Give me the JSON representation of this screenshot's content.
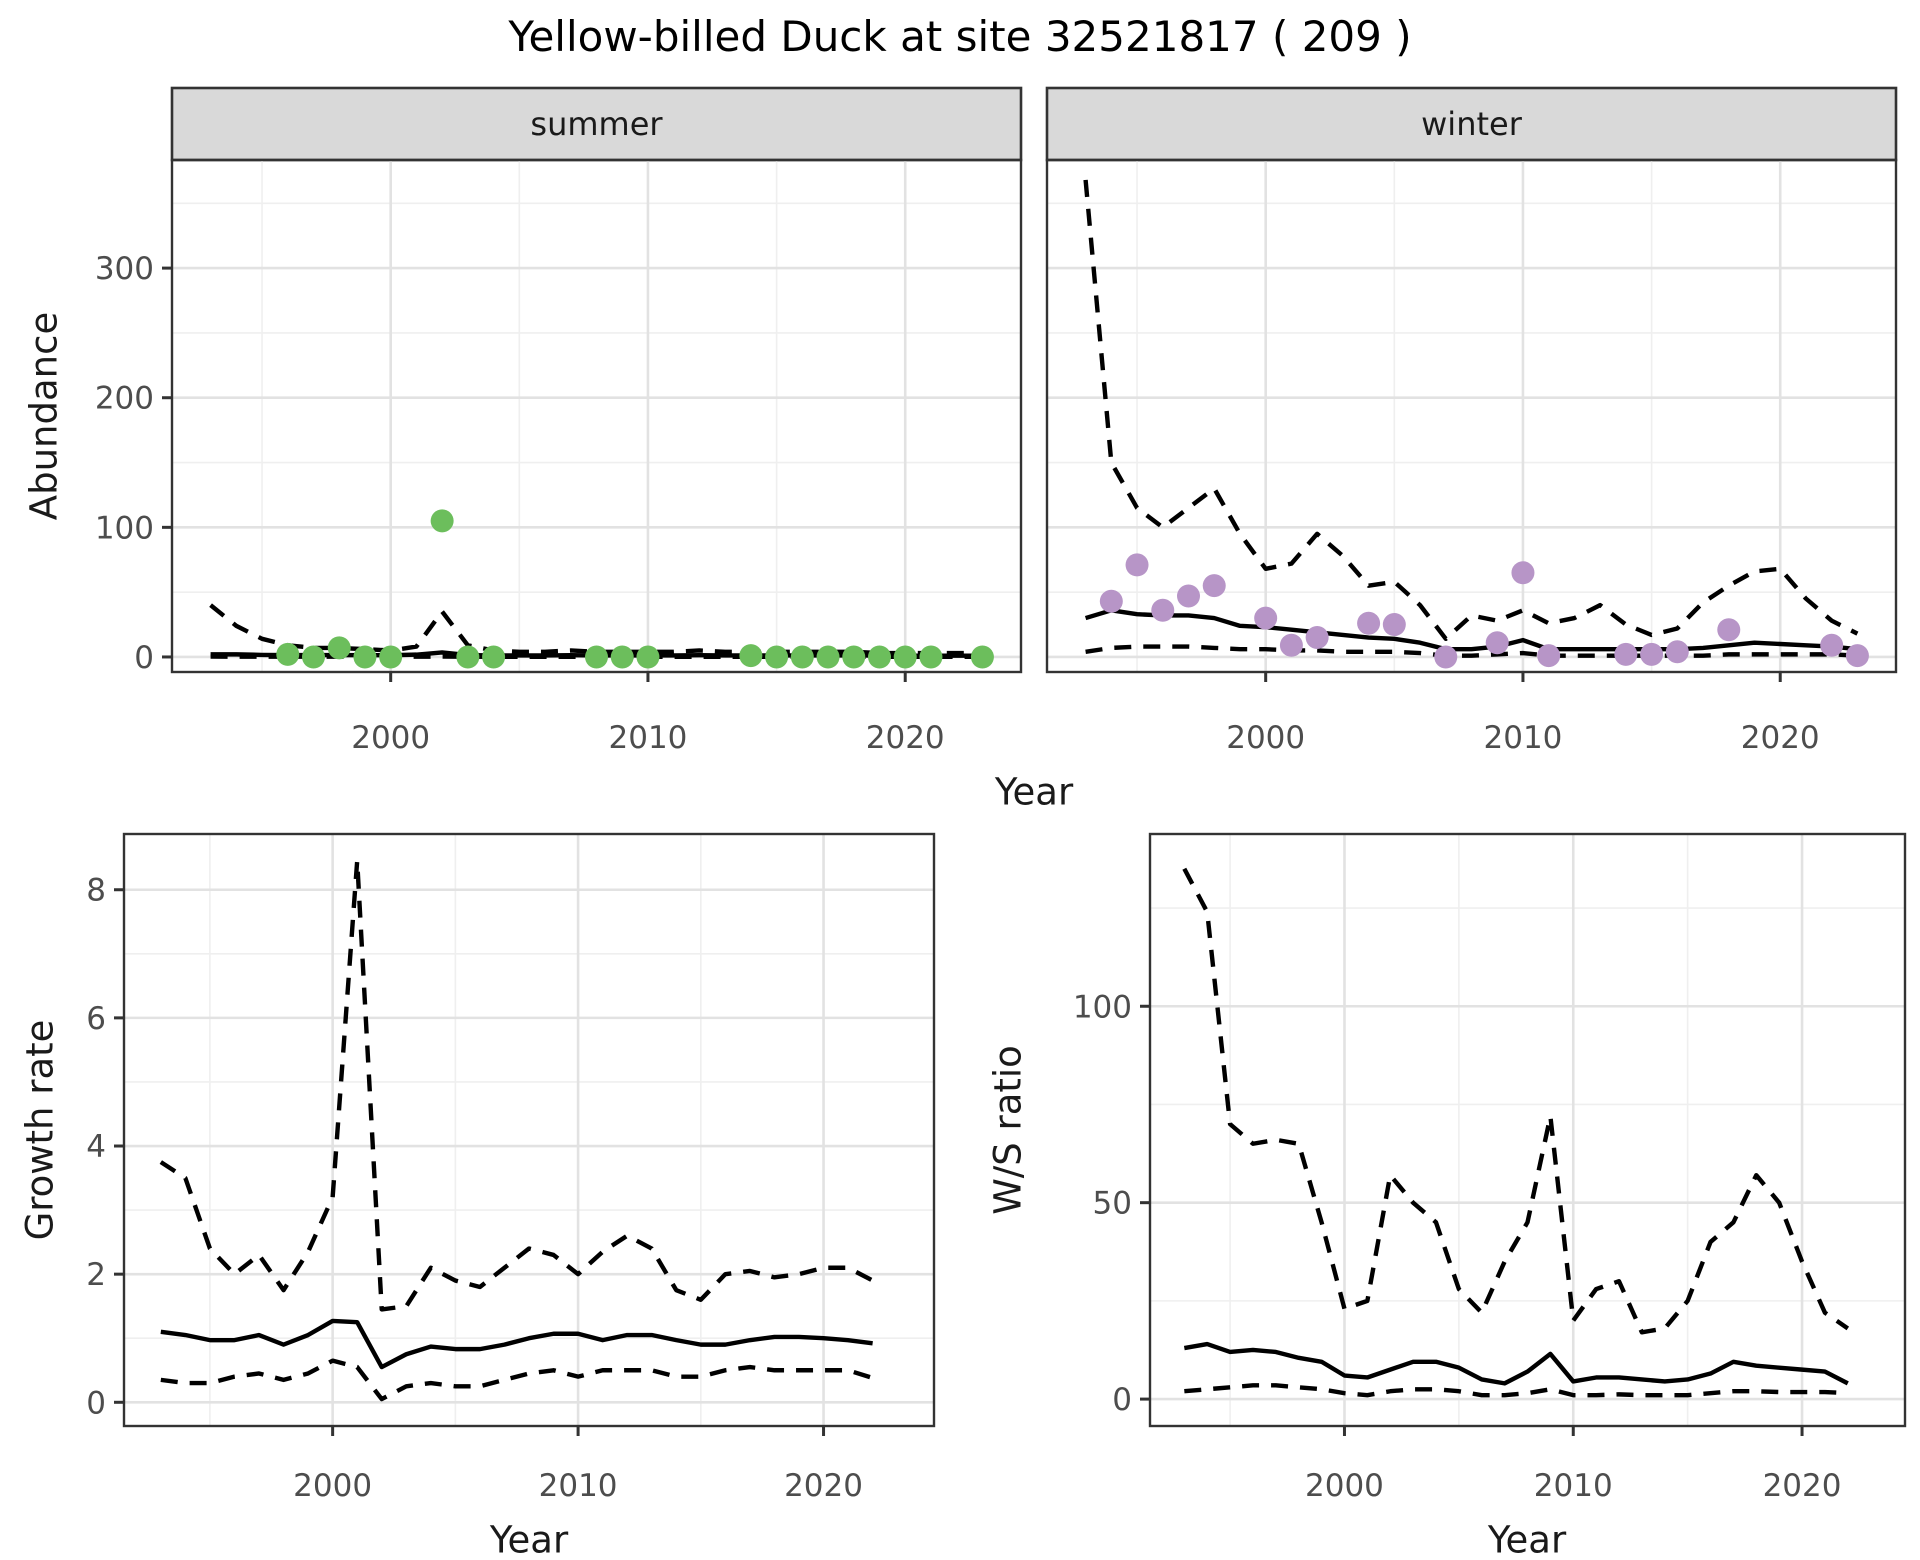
{
  "title": "Yellow-billed Duck at site 32521817 ( 209 )",
  "colors": {
    "background": "#FFFFFF",
    "line": "#000000",
    "summer_points": "#6CBE5C",
    "winter_points": "#B795C7",
    "strip_fill": "#D9D9D9",
    "strip_border": "#333333",
    "panel_border": "#333333",
    "grid_major": "#E2E2E2",
    "grid_minor": "#EFEFEF",
    "tick": "#333333",
    "tick_label": "#4D4D4D",
    "text": "#1A1A1A"
  },
  "chart_data": [
    {
      "id": "abundance",
      "type": "line+scatter",
      "ylabel": "Abundance",
      "xlabel": "Year",
      "xlim": [
        1991.5,
        2024.5
      ],
      "ylim": [
        -11.6,
        383.4
      ],
      "x_major_ticks": [
        2000,
        2010,
        2020
      ],
      "x_minor_ticks": [
        1995,
        2005,
        2015
      ],
      "y_major_ticks": [
        0,
        100,
        200,
        300
      ],
      "y_minor_ticks": [
        50,
        150,
        250,
        350
      ],
      "grid": true,
      "legend": "none",
      "line_styles": {
        "median": "solid",
        "ci": "dashed"
      },
      "facets": [
        {
          "name": "summer",
          "point_color": "#6CBE5C",
          "years": [
            1993,
            1994,
            1995,
            1996,
            1997,
            1998,
            1999,
            2000,
            2001,
            2002,
            2003,
            2004,
            2005,
            2006,
            2007,
            2008,
            2009,
            2010,
            2011,
            2012,
            2013,
            2014,
            2015,
            2016,
            2017,
            2018,
            2019,
            2020,
            2021,
            2022,
            2023
          ],
          "ci_upper": [
            40,
            24,
            14,
            9,
            7,
            7,
            6,
            5,
            8,
            35,
            9,
            5,
            4,
            4,
            5,
            4,
            4,
            4,
            4,
            5,
            4,
            4,
            4,
            4,
            4,
            4,
            3,
            3,
            3,
            3,
            3
          ],
          "median": [
            2,
            2,
            1.6,
            1.5,
            1.5,
            1.5,
            1.4,
            1.4,
            1.8,
            3.5,
            1.5,
            1.2,
            1.2,
            1.2,
            1.4,
            1.2,
            1.2,
            1.2,
            1.2,
            1.4,
            1.2,
            1.2,
            1.2,
            1.2,
            1.2,
            1.2,
            1.1,
            1,
            1,
            1,
            1
          ],
          "ci_lower": [
            0.3,
            0.2,
            0.2,
            0.2,
            0.2,
            0.2,
            0.2,
            0.2,
            0.2,
            0.3,
            0.2,
            0.1,
            0.1,
            0.1,
            0.1,
            0.1,
            0.1,
            0.1,
            0.1,
            0.1,
            0.1,
            0.1,
            0.1,
            0.1,
            0.1,
            0.1,
            0.1,
            0.1,
            0.1,
            0.1,
            0.1
          ],
          "points": [
            [
              1996,
              2
            ],
            [
              1997,
              0
            ],
            [
              1998,
              7
            ],
            [
              1999,
              0
            ],
            [
              2000,
              0
            ],
            [
              2002,
              105
            ],
            [
              2003,
              0
            ],
            [
              2004,
              0
            ],
            [
              2008,
              0
            ],
            [
              2009,
              0
            ],
            [
              2010,
              0
            ],
            [
              2014,
              1
            ],
            [
              2015,
              0
            ],
            [
              2016,
              0
            ],
            [
              2017,
              0
            ],
            [
              2018,
              0
            ],
            [
              2019,
              0
            ],
            [
              2020,
              0
            ],
            [
              2021,
              0
            ],
            [
              2023,
              0
            ]
          ]
        },
        {
          "name": "winter",
          "point_color": "#B795C7",
          "years": [
            1993,
            1994,
            1995,
            1996,
            1997,
            1998,
            1999,
            2000,
            2001,
            2002,
            2003,
            2004,
            2005,
            2006,
            2007,
            2008,
            2009,
            2010,
            2011,
            2012,
            2013,
            2014,
            2015,
            2016,
            2017,
            2018,
            2019,
            2020,
            2021,
            2022,
            2023
          ],
          "ci_upper": [
            368,
            150,
            115,
            100,
            115,
            130,
            95,
            68,
            72,
            95,
            78,
            55,
            58,
            40,
            14,
            32,
            28,
            36,
            26,
            30,
            40,
            25,
            17,
            22,
            42,
            55,
            66,
            68,
            45,
            28,
            18
          ],
          "median": [
            30,
            36,
            33,
            32,
            32,
            30,
            24,
            23,
            21,
            19,
            17,
            15,
            14,
            11,
            6,
            6,
            8,
            13,
            6,
            6,
            6,
            6,
            6,
            6,
            7,
            9,
            11,
            10,
            9,
            8,
            6
          ],
          "ci_lower": [
            4,
            7,
            8,
            8,
            8,
            7,
            6,
            6,
            5,
            5,
            4,
            4,
            4,
            3,
            1,
            1,
            2,
            3,
            1,
            1,
            1,
            1,
            1,
            1,
            1,
            2,
            2,
            2,
            2,
            2,
            1
          ],
          "points": [
            [
              1994,
              43
            ],
            [
              1995,
              71
            ],
            [
              1996,
              36
            ],
            [
              1997,
              47
            ],
            [
              1998,
              55
            ],
            [
              2000,
              30
            ],
            [
              2001,
              9
            ],
            [
              2002,
              15
            ],
            [
              2004,
              26
            ],
            [
              2005,
              25
            ],
            [
              2007,
              0
            ],
            [
              2009,
              11
            ],
            [
              2010,
              65
            ],
            [
              2011,
              1
            ],
            [
              2014,
              2
            ],
            [
              2015,
              2
            ],
            [
              2016,
              4
            ],
            [
              2018,
              21
            ],
            [
              2022,
              9
            ],
            [
              2023,
              1
            ]
          ]
        }
      ]
    },
    {
      "id": "growth_rate",
      "type": "line",
      "ylabel": "Growth rate",
      "xlabel": "Year",
      "xlim": [
        1991.5,
        2024.5
      ],
      "ylim": [
        -0.37,
        8.87
      ],
      "x_major_ticks": [
        2000,
        2010,
        2020
      ],
      "x_minor_ticks": [
        1995,
        2005,
        2015
      ],
      "y_major_ticks": [
        0,
        2,
        4,
        6,
        8
      ],
      "y_minor_ticks": [
        1,
        3,
        5,
        7
      ],
      "grid": true,
      "legend": "none",
      "line_styles": {
        "median": "solid",
        "ci": "dashed"
      },
      "years": [
        1993,
        1994,
        1995,
        1996,
        1997,
        1998,
        1999,
        2000,
        2001,
        2002,
        2003,
        2004,
        2005,
        2006,
        2007,
        2008,
        2009,
        2010,
        2011,
        2012,
        2013,
        2014,
        2015,
        2016,
        2017,
        2018,
        2019,
        2020,
        2021,
        2022
      ],
      "ci_upper": [
        3.75,
        3.5,
        2.4,
        2.0,
        2.3,
        1.75,
        2.35,
        3.2,
        8.45,
        1.45,
        1.5,
        2.1,
        1.9,
        1.8,
        2.1,
        2.4,
        2.3,
        2.0,
        2.35,
        2.6,
        2.4,
        1.75,
        1.6,
        2.0,
        2.05,
        1.95,
        2.0,
        2.1,
        2.1,
        1.9
      ],
      "median": [
        1.1,
        1.05,
        0.97,
        0.97,
        1.05,
        0.9,
        1.05,
        1.27,
        1.25,
        0.55,
        0.75,
        0.87,
        0.83,
        0.83,
        0.9,
        1.0,
        1.07,
        1.07,
        0.97,
        1.05,
        1.05,
        0.97,
        0.9,
        0.9,
        0.97,
        1.02,
        1.02,
        1.0,
        0.97,
        0.92
      ],
      "ci_lower": [
        0.35,
        0.3,
        0.3,
        0.4,
        0.45,
        0.35,
        0.45,
        0.65,
        0.55,
        0.05,
        0.25,
        0.3,
        0.25,
        0.25,
        0.35,
        0.45,
        0.5,
        0.4,
        0.5,
        0.5,
        0.5,
        0.4,
        0.4,
        0.5,
        0.55,
        0.5,
        0.5,
        0.5,
        0.5,
        0.38
      ]
    },
    {
      "id": "ws_ratio",
      "type": "line",
      "ylabel": "W/S ratio",
      "xlabel": "Year",
      "xlim": [
        1991.5,
        2024.5
      ],
      "ylim": [
        -6.85,
        143.85
      ],
      "x_major_ticks": [
        2000,
        2010,
        2020
      ],
      "x_minor_ticks": [
        1995,
        2005,
        2015
      ],
      "y_major_ticks": [
        0,
        50,
        100
      ],
      "y_minor_ticks": [
        25,
        75,
        125
      ],
      "grid": true,
      "legend": "none",
      "line_styles": {
        "median": "solid",
        "ci": "dashed"
      },
      "years": [
        1993,
        1994,
        1995,
        1996,
        1997,
        1998,
        1999,
        2000,
        2001,
        2002,
        2003,
        2004,
        2005,
        2006,
        2007,
        2008,
        2009,
        2010,
        2011,
        2012,
        2013,
        2014,
        2015,
        2016,
        2017,
        2018,
        2019,
        2020,
        2021,
        2022
      ],
      "ci_upper": [
        135,
        124,
        70,
        65,
        66,
        65,
        45,
        23,
        25,
        57,
        50,
        45,
        28,
        22,
        35,
        45,
        72,
        20,
        28,
        30,
        17,
        18,
        25,
        40,
        45,
        57,
        50,
        35,
        22,
        18
      ],
      "median": [
        13,
        14,
        12,
        12.5,
        12,
        10.5,
        9.5,
        6,
        5.5,
        7.5,
        9.5,
        9.5,
        8,
        5,
        4,
        7,
        11.5,
        4.5,
        5.5,
        5.5,
        5,
        4.5,
        5,
        6.5,
        9.5,
        8.5,
        8,
        7.5,
        7,
        4
      ],
      "ci_lower": [
        2,
        2.5,
        3,
        3.5,
        3.5,
        3,
        2.5,
        1.5,
        1,
        2,
        2.5,
        2.5,
        2,
        1,
        1,
        1.5,
        2.5,
        1,
        1,
        1.2,
        1,
        1,
        1,
        1.5,
        2,
        2,
        1.8,
        1.8,
        1.8,
        1.5
      ]
    }
  ]
}
